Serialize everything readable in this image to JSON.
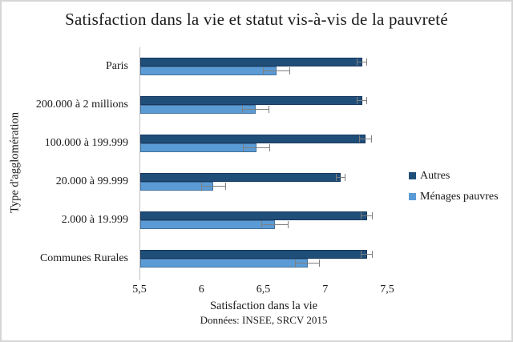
{
  "chart_data": {
    "type": "bar",
    "orientation": "horizontal",
    "title": "Satisfaction dans la vie et statut vis-à-vis de la pauvreté",
    "xlabel": "Satisfaction dans la vie",
    "ylabel": "Type d'agglomération",
    "source_note": "Données: INSEE, SRCV 2015",
    "xlim": [
      5.5,
      7.5
    ],
    "x_ticks": [
      5.5,
      6,
      6.5,
      7,
      7.5
    ],
    "x_tick_labels": [
      "5,5",
      "6",
      "6,5",
      "7",
      "7,5"
    ],
    "categories": [
      "Paris",
      "200.000 à 2 millions",
      "100.000 à 199.999",
      "20.000 à 99.999",
      "2.000 à 19.999",
      "Communes Rurales"
    ],
    "series": [
      {
        "name": "Autres",
        "color": "#1F4E79",
        "border_color": "#17375E",
        "values": [
          7.29,
          7.29,
          7.32,
          7.12,
          7.33,
          7.33
        ],
        "errors": [
          0.04,
          0.04,
          0.05,
          0.04,
          0.05,
          0.05
        ]
      },
      {
        "name": "Ménages pauvres",
        "color": "#5B9BD5",
        "border_color": "#41719C",
        "values": [
          6.6,
          6.43,
          6.44,
          6.09,
          6.59,
          6.85
        ],
        "errors": [
          0.11,
          0.11,
          0.11,
          0.1,
          0.11,
          0.1
        ]
      }
    ],
    "grid": false,
    "legend_position": "right",
    "error_bar_color": "#7F7F7F",
    "axis_line_color": "#BFBFBF"
  },
  "colors": {
    "background": "#FFFFFF",
    "frame_border": "#D6D6D6",
    "text": "#1A1A1A"
  }
}
